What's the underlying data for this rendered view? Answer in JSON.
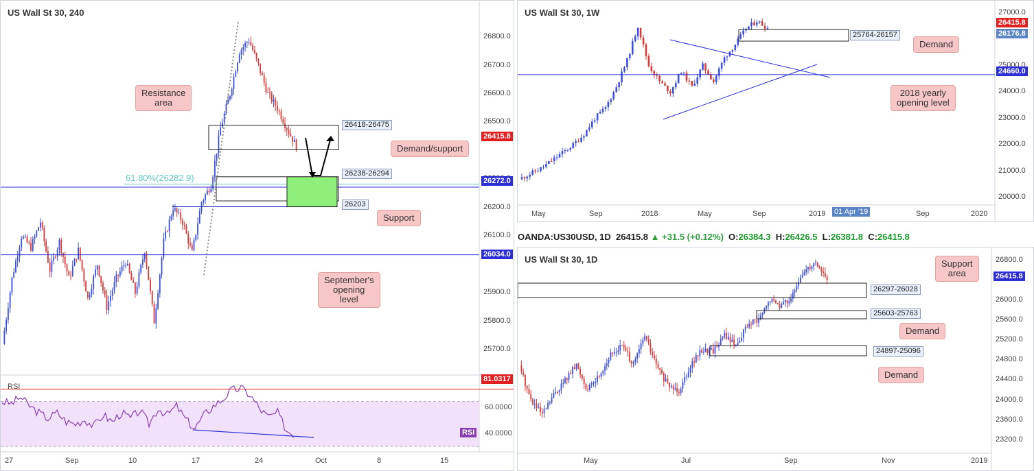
{
  "panels": {
    "h4": {
      "title": "US Wall St 30, 240",
      "price_ticks": [
        "26800.0",
        "26700.0",
        "26600.0",
        "26500.0",
        "26300.0",
        "26200.0",
        "26100.0",
        "25900.0",
        "25800.0",
        "25700.0"
      ],
      "time_ticks": [
        "27",
        "Sep",
        "10",
        "17",
        "24",
        "Oct",
        "8",
        "15"
      ],
      "last_price_tag": "26415.8",
      "level_tags": {
        "yearly_support": "26272.0",
        "september_open": "26034.0"
      },
      "fib_label": "61.80%(26282.9)",
      "zone_labels": {
        "resistance": "26418-26475",
        "demand": "26238-26294",
        "support": "26203"
      },
      "notes": {
        "resistance_area": [
          "Resistance",
          "area"
        ],
        "demand_support": "Demand/support",
        "support": "Support",
        "september_open": [
          "September's",
          "opening",
          "level"
        ]
      },
      "rsi": {
        "label": "RSI",
        "ticks": [
          "60.0000",
          "40.0000"
        ],
        "upper_tag": "81.0317",
        "badge": "RSI"
      }
    },
    "weekly": {
      "title": "US Wall St 30, 1W",
      "price_ticks": [
        "27000.0",
        "25000.0",
        "24000.0",
        "23000.0",
        "22000.0",
        "21000.0",
        "20000.0"
      ],
      "time_ticks": [
        "May",
        "Sep",
        "2018",
        "May",
        "Sep",
        "2019",
        "Sep",
        "2020"
      ],
      "date_cursor": "01 Apr '19",
      "tags": {
        "last": "26415.8",
        "demand_mid": "26176.8",
        "yearly_open": "24660.0"
      },
      "zone_label": "25764-26157",
      "notes": {
        "demand": "Demand",
        "yearly_open": [
          "2018 yearly",
          "opening level"
        ]
      }
    },
    "daily": {
      "title": "US Wall St 30, 1D",
      "price_ticks": [
        "26800.0",
        "26000.0",
        "25600.0",
        "25200.0",
        "24800.0",
        "24400.0",
        "24000.0",
        "23600.0",
        "23200.0"
      ],
      "time_ticks": [
        "May",
        "Jul",
        "Sep",
        "Nov",
        "2019"
      ],
      "last_price_tag": "26415.8",
      "zone_labels": {
        "support": "26297-26028",
        "demand_1": "25603-25763",
        "demand_2": "24897-25096"
      },
      "notes": {
        "support_area": [
          "Support",
          "area"
        ],
        "demand_1": "Demand",
        "demand_2": "Demand"
      }
    }
  },
  "infoline": {
    "symbol": "OANDA:US30USD, 1D",
    "last": "26415.8",
    "change": "+31.5 (+0.12%)",
    "o_label": "O:",
    "o": "26384.3",
    "h_label": "H:",
    "h": "26426.5",
    "l_label": "L:",
    "l": "26381.8",
    "c_label": "C:",
    "c": "26415.8"
  },
  "colors": {
    "bull": "#3d4ee0",
    "bear": "#d93a3a",
    "green_zone": "#8ef07a",
    "note_bg": "#f7c6c6",
    "rsi_fill": "#f1e1fb",
    "rsi_line": "#8a3fb0",
    "level_line": "#2c2fd6"
  },
  "chart_data": [
    {
      "type": "candlestick",
      "panel": "h4",
      "title": "US Wall St 30, 240",
      "x_ticks": [
        "27",
        "Sep",
        "10",
        "17",
        "24",
        "Oct",
        "8",
        "15"
      ],
      "ylim": [
        25630,
        26880
      ],
      "close_path": [
        25720,
        25950,
        26100,
        26060,
        26150,
        25980,
        26080,
        25950,
        26050,
        25880,
        26000,
        25850,
        25950,
        26010,
        25900,
        26050,
        25800,
        26080,
        26200,
        26150,
        26040,
        26220,
        26280,
        26480,
        26600,
        26750,
        26790,
        26700,
        26600,
        26550,
        26480,
        26415.8
      ],
      "levels": [
        26272.0,
        26034.0,
        26203
      ],
      "zones": [
        [
          26418,
          26475
        ],
        [
          26238,
          26294
        ]
      ],
      "fib": 26282.9,
      "last": 26415.8
    },
    {
      "type": "line",
      "panel": "h4-rsi",
      "ylim": [
        30,
        90
      ],
      "upper": 81.0317,
      "values": [
        70,
        68,
        74,
        66,
        60,
        55,
        60,
        52,
        50,
        54,
        48,
        58,
        52,
        60,
        55,
        62,
        50,
        64,
        58,
        66,
        54,
        46,
        58,
        66,
        72,
        80,
        82,
        76,
        64,
        56,
        60,
        44,
        40
      ]
    },
    {
      "type": "candlestick",
      "panel": "weekly",
      "title": "US Wall St 30, 1W",
      "x_ticks": [
        "May",
        "Sep",
        "2018",
        "May",
        "Sep",
        "2019",
        "Sep",
        "2020"
      ],
      "ylim": [
        19800,
        27200
      ],
      "close_path": [
        20700,
        20900,
        21100,
        21400,
        21700,
        22000,
        22400,
        23000,
        23400,
        24200,
        25200,
        26500,
        25000,
        24400,
        24000,
        24800,
        24200,
        25000,
        24400,
        25300,
        25800,
        26400,
        26700,
        26415.8
      ],
      "levels": [
        24660.0
      ],
      "zones": [
        [
          25764,
          26157
        ]
      ],
      "last": 26415.8
    },
    {
      "type": "candlestick",
      "panel": "daily",
      "title": "US Wall St 30, 1D",
      "x_ticks": [
        "May",
        "Jul",
        "Sep",
        "Nov",
        "2019"
      ],
      "ylim": [
        23100,
        26950
      ],
      "close_path": [
        24700,
        24000,
        23700,
        24100,
        24400,
        24700,
        24200,
        24500,
        24900,
        25100,
        24700,
        25300,
        24700,
        24300,
        24200,
        24700,
        25000,
        25000,
        25300,
        25100,
        25500,
        25600,
        26000,
        25900,
        26100,
        26600,
        26780,
        26415.8
      ],
      "zones": [
        [
          26028,
          26297
        ],
        [
          25603,
          25763
        ],
        [
          24897,
          25096
        ]
      ],
      "last": 26415.8
    }
  ]
}
